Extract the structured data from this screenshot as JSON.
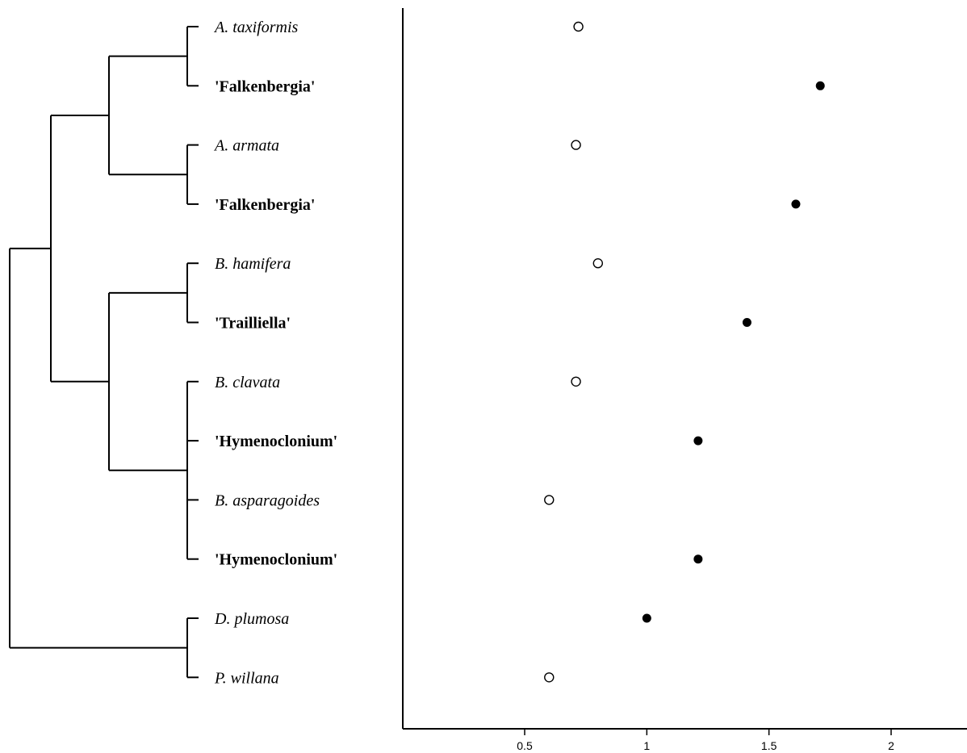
{
  "chart_data": {
    "type": "scatter",
    "title": "",
    "xlabel": "",
    "ylabel": "",
    "xlim": [
      0.0,
      2.3
    ],
    "x_ticks": [
      "0.5",
      "1",
      "1.5",
      "2"
    ],
    "x_tick_values": [
      0.5,
      1,
      1.5,
      2
    ],
    "grid": false,
    "legend": "none",
    "marker_styles": {
      "open": "open circle",
      "filled": "filled circle"
    },
    "taxa": [
      {
        "label": "A. taxiformis",
        "style": "italic",
        "value": 0.72,
        "marker": "open"
      },
      {
        "label": "'Falkenbergia'",
        "style": "bold",
        "value": 1.71,
        "marker": "filled"
      },
      {
        "label": "A. armata",
        "style": "italic",
        "value": 0.71,
        "marker": "open"
      },
      {
        "label": "'Falkenbergia'",
        "style": "bold",
        "value": 1.61,
        "marker": "filled"
      },
      {
        "label": "B. hamifera",
        "style": "italic",
        "value": 0.8,
        "marker": "open"
      },
      {
        "label": "'Trailliella'",
        "style": "bold",
        "value": 1.41,
        "marker": "filled"
      },
      {
        "label": "B. clavata",
        "style": "italic",
        "value": 0.71,
        "marker": "open"
      },
      {
        "label": "'Hymenoclonium'",
        "style": "bold",
        "value": 1.21,
        "marker": "filled"
      },
      {
        "label": "B. asparagoides",
        "style": "italic",
        "value": 0.6,
        "marker": "open"
      },
      {
        "label": "'Hymenoclonium'",
        "style": "bold",
        "value": 1.21,
        "marker": "filled"
      },
      {
        "label": "D. plumosa",
        "style": "italic",
        "value": 1.0,
        "marker": "filled"
      },
      {
        "label": "P. willana",
        "style": "italic",
        "value": 0.6,
        "marker": "open"
      }
    ],
    "tree": {
      "children": [
        {
          "children": [
            {
              "children": [
                {
                  "children": [
                    0,
                    1
                  ]
                },
                {
                  "children": [
                    2,
                    3
                  ]
                }
              ]
            },
            {
              "children": [
                {
                  "children": [
                    4,
                    5
                  ]
                },
                {
                  "children": [
                    {
                      "children": [
                        6,
                        7
                      ]
                    },
                    {
                      "children": [
                        8,
                        9
                      ]
                    }
                  ]
                }
              ]
            }
          ]
        },
        {
          "children": [
            10,
            11
          ]
        }
      ]
    }
  },
  "colors": {
    "ink": "#000000",
    "background": "#ffffff"
  }
}
